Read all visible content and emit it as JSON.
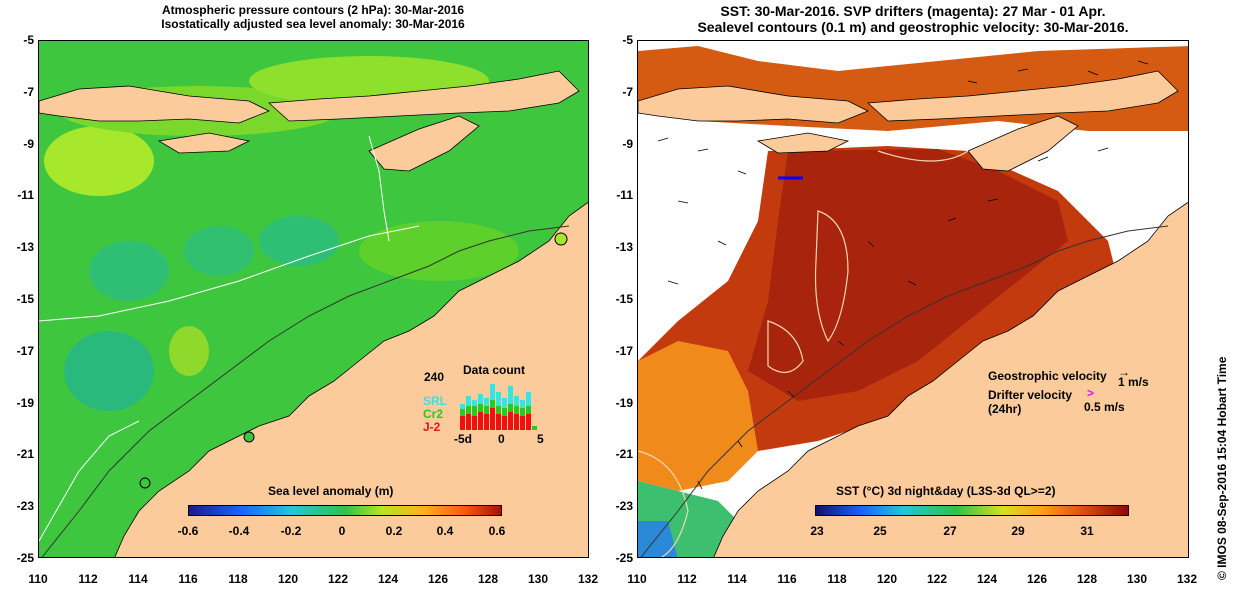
{
  "left_title": {
    "line1": "Atmospheric pressure contours (2 hPa): 30-Mar-2016",
    "line2": "Isostatically adjusted sea level anomaly: 30-Mar-2016"
  },
  "right_title": {
    "line1": "SST: 30-Mar-2016. SVP drifters (magenta): 27 Mar - 01 Apr.",
    "line2": "Sealevel contours (0.1 m) and geostrophic velocity: 30-Mar-2016."
  },
  "y_ticks": [
    "-5",
    "-7",
    "-9",
    "-11",
    "-13",
    "-15",
    "-17",
    "-19",
    "-21",
    "-23",
    "-25"
  ],
  "x_ticks": [
    "110",
    "112",
    "114",
    "116",
    "118",
    "120",
    "122",
    "124",
    "126",
    "128",
    "130",
    "132"
  ],
  "left_colorbar": {
    "title": "Sea level anomaly (m)",
    "labels": [
      "-0.6",
      "-0.4",
      "-0.2",
      "0",
      "0.2",
      "0.4",
      "0.6"
    ]
  },
  "right_colorbar": {
    "title": "SST (°C) 3d night&day (L3S-3d QL>=2)",
    "labels": [
      "23",
      "25",
      "27",
      "29",
      "31"
    ]
  },
  "data_count": {
    "title": "Data count",
    "max_label": "240",
    "series": [
      "SRL",
      "Cr2",
      "J-2"
    ],
    "x_labels": [
      "-5d",
      "0",
      "5"
    ],
    "colors": {
      "SRL": "#33e5e5",
      "Cr2": "#22cc22",
      "J-2": "#ee1111"
    }
  },
  "legend": {
    "geostrophic_label": "Geostrophic velocity",
    "geostrophic_scale": "1 m/s",
    "drifter_label": "Drifter velocity",
    "drifter_sub": "(24hr)",
    "drifter_scale": "0.5 m/s"
  },
  "credit": "© IMOS 08-Sep-2016 15:04 Hobart Time"
}
